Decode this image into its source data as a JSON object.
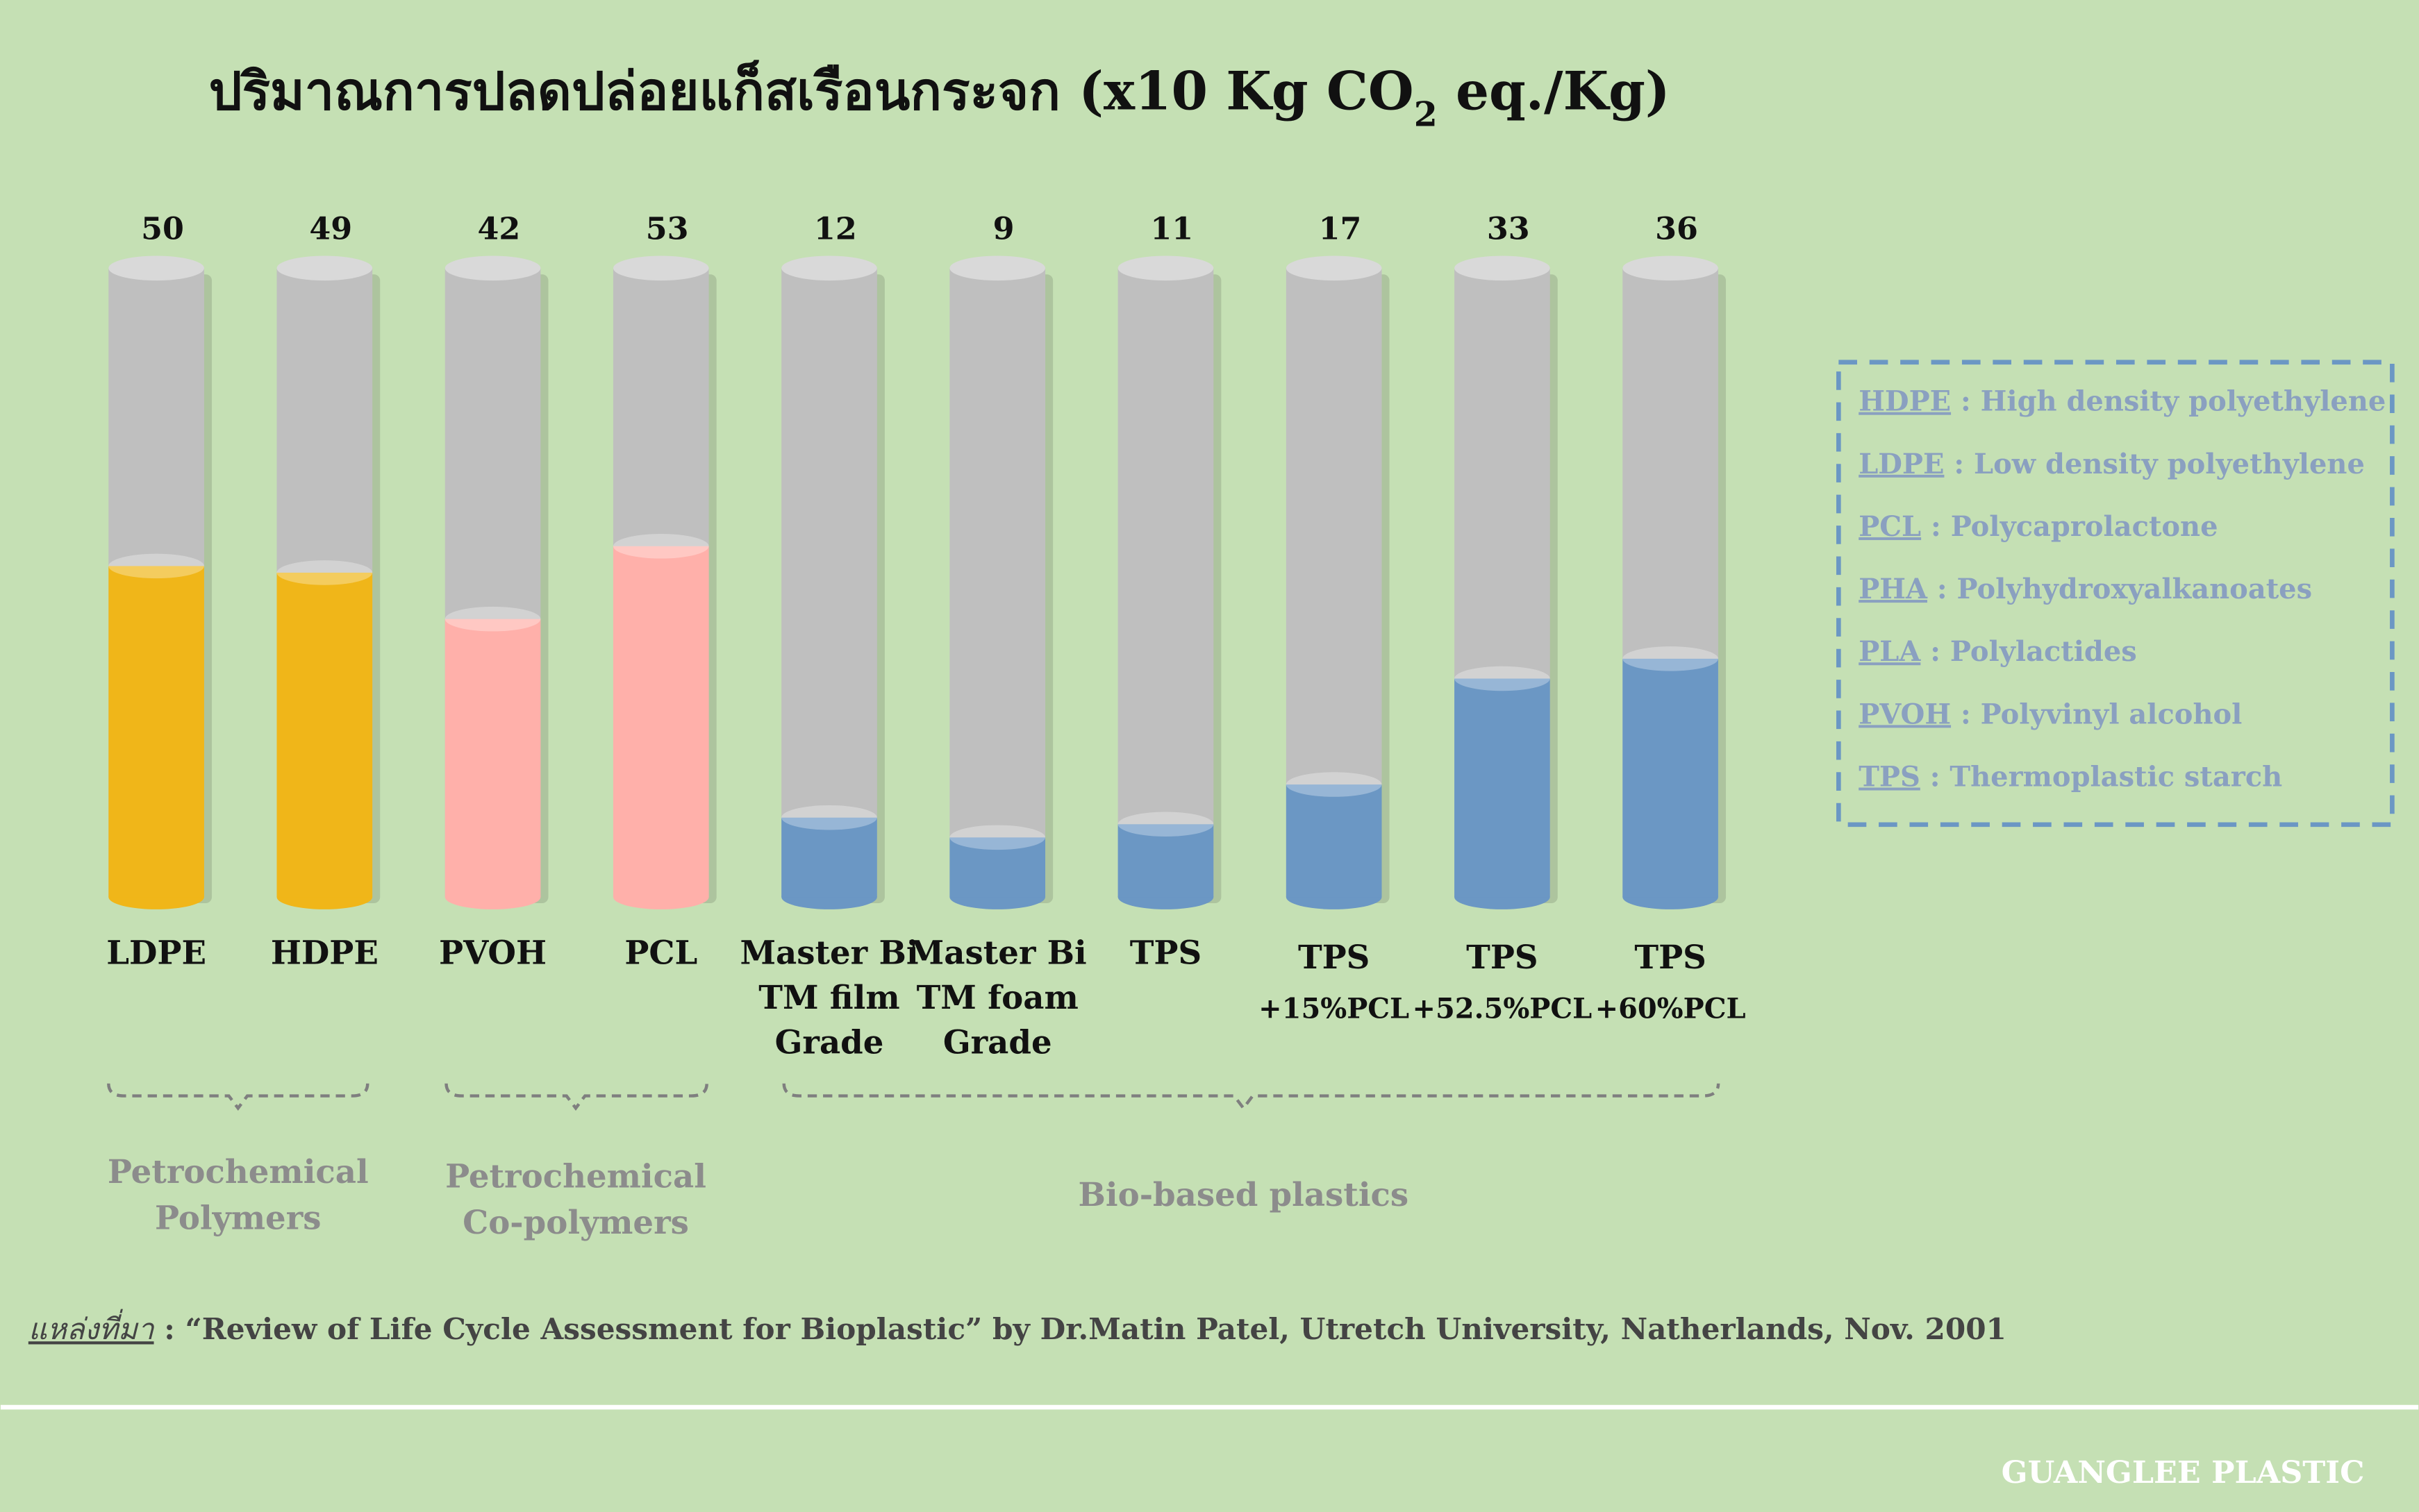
{
  "chart_data": {
    "type": "cylinder-bar",
    "title": [
      "ปริมาณการปลดปล่อยแก็สเรือนกระจก (x10 Kg CO",
      "2",
      " eq./Kg)"
    ],
    "categories": [
      [
        "LDPE"
      ],
      [
        "HDPE"
      ],
      [
        "PVOH"
      ],
      [
        "PCL"
      ],
      [
        "Master Bi",
        "TM film",
        "Grade"
      ],
      [
        "Master Bi",
        "TM foam",
        "Grade"
      ],
      [
        "TPS"
      ],
      [
        "TPS",
        "+15%PCL"
      ],
      [
        "TPS",
        "+52.5%PCL"
      ],
      [
        "TPS",
        "+60%PCL"
      ]
    ],
    "values": [
      50,
      49,
      42,
      53,
      12,
      9,
      11,
      17,
      33,
      36
    ],
    "colors": [
      "#f0b619",
      "#f0b619",
      "#ffb0aa",
      "#ffb0aa",
      "#6b97c4",
      "#6b97c4",
      "#6b97c4",
      "#6b97c4",
      "#6b97c4",
      "#6b97c4"
    ],
    "ylim": [
      0,
      95
    ],
    "groups": [
      [
        "Petrochemical",
        "Polymers"
      ],
      [
        "Petrochemical",
        "Co-polymers"
      ],
      [
        "Bio-based plastics"
      ]
    ],
    "legend": [
      {
        "abbr": "HDPE",
        "text": " : High density polyethylene"
      },
      {
        "abbr": "LDPE",
        "text": " : Low density polyethylene"
      },
      {
        "abbr": "PCL",
        "text": " : Polycaprolactone"
      },
      {
        "abbr": "PHA",
        "text": " : Polyhydroxyalkanoates"
      },
      {
        "abbr": "PLA",
        "text": " : Polylactides"
      },
      {
        "abbr": "PVOH",
        "text": " : Polyvinyl alcohol"
      },
      {
        "abbr": "TPS",
        "text": " : Thermoplastic starch"
      }
    ],
    "source_label": "แหล่งที่มา",
    "source_text": " : “Review of Life Cycle Assessment for Bioplastic” by Dr.Matin Patel, Utretch University, Natherlands, Nov. 2001",
    "footer": "GUANGLEE PLASTIC"
  }
}
